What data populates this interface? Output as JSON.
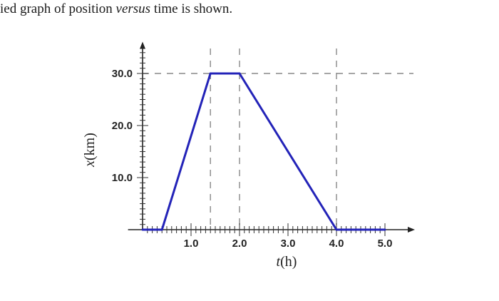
{
  "caption": {
    "before": "ied graph of position ",
    "emphasis": "versus",
    "after": " time is shown."
  },
  "chart_data": {
    "type": "line",
    "title": "",
    "xlabel_var": "t",
    "xlabel_unit": "(h)",
    "ylabel_var": "x",
    "ylabel_unit": "(km)",
    "xlim": [
      -0.3,
      5.5
    ],
    "ylim": [
      0,
      35
    ],
    "x_ticks": [
      1.0,
      2.0,
      3.0,
      4.0,
      5.0
    ],
    "x_tick_labels": [
      "1.0",
      "2.0",
      "3.0",
      "4.0",
      "5.0"
    ],
    "y_ticks": [
      10.0,
      20.0,
      30.0
    ],
    "y_tick_labels": [
      "10.0",
      "20.0",
      "30.0"
    ],
    "minor_tick_step": 0.1,
    "y_minor_tick_step": 1.0,
    "series": [
      {
        "x": [
          0,
          0.4,
          1.4,
          2.0,
          4.0,
          5.0
        ],
        "y": [
          0,
          0,
          30,
          30,
          0,
          0
        ],
        "color": "#2323b8"
      }
    ],
    "reference_lines": {
      "horizontal_y": 30,
      "vertical_x": [
        1.4,
        2.0,
        4.0
      ],
      "style": "dashed",
      "color": "#888888"
    },
    "grid": false
  }
}
